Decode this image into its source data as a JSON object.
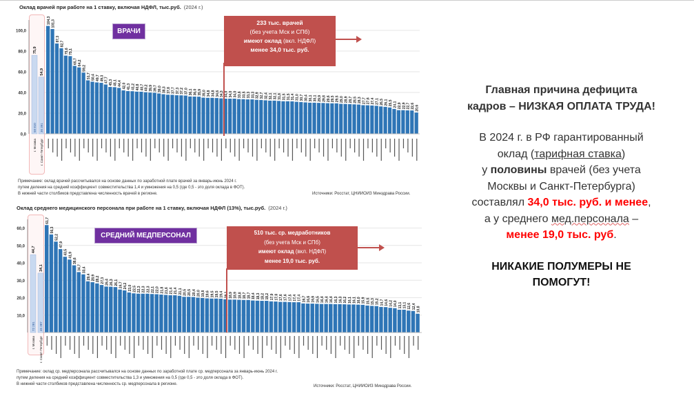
{
  "chart_data": [
    {
      "type": "bar",
      "title": "Оклад врачей при работе на 1 ставку, включая НДФЛ, тыс.руб.",
      "year": "(2024 г.)",
      "tag": "ВРАЧИ",
      "ylim": [
        0,
        110
      ],
      "yticks": [
        "0,0",
        "20,0",
        "40,0",
        "60,0",
        "80,0",
        "100,0"
      ],
      "ytick_values": [
        0,
        20,
        40,
        60,
        80,
        100
      ],
      "capitals": {
        "categories": [
          "г. Москва",
          "г. Санкт-Петербург"
        ],
        "values": [
          75.9,
          54.9
        ],
        "counts": [
          "58 810",
          "30 391"
        ]
      },
      "values": [
        104.3,
        101.3,
        87.3,
        82.7,
        75.6,
        75.1,
        65.7,
        64.2,
        59.2,
        51.7,
        50.4,
        49.7,
        49.3,
        47.7,
        45.3,
        45.1,
        44.4,
        42.0,
        41.3,
        41.2,
        40.8,
        40.7,
        40.2,
        39.9,
        39.7,
        39.0,
        38.3,
        37.8,
        37.7,
        37.3,
        37.2,
        37.0,
        36.1,
        36.0,
        35.9,
        35.0,
        34.8,
        34.8,
        34.6,
        34.3,
        34.0,
        34.0,
        34.0,
        33.6,
        33.5,
        33.3,
        33.3,
        32.9,
        32.7,
        32.4,
        32.1,
        32.1,
        31.8,
        31.5,
        31.5,
        31.4,
        31.0,
        30.7,
        30.4,
        30.1,
        30.1,
        29.9,
        29.8,
        29.6,
        29.5,
        29.5,
        29.0,
        28.9,
        28.7,
        28.5,
        28.3,
        27.7,
        27.6,
        27.4,
        27.1,
        26.5,
        26.1,
        25.5,
        24.1,
        22.9,
        22.9,
        22.7,
        22.6,
        20.6
      ],
      "threshold_index": 40,
      "callout": {
        "line1": "233 тыс. врачей",
        "line2": "(без учета Мск и СПб)",
        "line3_bold": "имеют оклад",
        "line3_rest": " (вкл. НДФЛ)",
        "line4": "менее 34,0 тыс. руб."
      },
      "notes": [
        "Примечание: оклад врачей рассчитывался на основе данных по заработной плате врачей за январь-июнь 2024 г.",
        "путем деления на средний коэффициент совместительства 1,4 и умножения на 0,5 (где 0,5 - это доля оклада в ФОТ).",
        "В нижней части столбиков представлена численность врачей в регионе."
      ],
      "source": "Источники: Росстат, ЦНИИОИЗ Минздрава России."
    },
    {
      "type": "bar",
      "title": "Оклад среднего медицинского персонала при работе на 1 ставку, включая НДФЛ (13%), тыс.руб.",
      "year": "(2024 г.)",
      "tag": "СРЕДНИЙ МЕДПЕРСОНАЛ",
      "ylim": [
        0,
        65
      ],
      "yticks": [
        "10,0",
        "20,0",
        "30,0",
        "40,0",
        "50,0",
        "60,0"
      ],
      "ytick_values": [
        10,
        20,
        30,
        40,
        50,
        60
      ],
      "capitals": {
        "categories": [
          "г. Москва",
          "г. Санкт-Петербург"
        ],
        "values": [
          44.7,
          34.1
        ],
        "counts": [
          "72 281",
          "45 387"
        ]
      },
      "values": [
        61.7,
        56.3,
        52.2,
        47.9,
        43.5,
        41.9,
        38.6,
        34.7,
        33.4,
        29.4,
        28.9,
        28.2,
        27.3,
        26.4,
        26.3,
        26.1,
        24.7,
        24.2,
        23.0,
        22.5,
        22.3,
        22.3,
        22.3,
        22.1,
        22.0,
        21.8,
        21.6,
        21.4,
        21.4,
        21.1,
        20.5,
        20.5,
        20.4,
        20.0,
        19.8,
        19.6,
        19.5,
        19.5,
        19.4,
        19.1,
        18.9,
        18.9,
        18.8,
        18.7,
        18.7,
        18.4,
        18.3,
        18.2,
        18.2,
        17.9,
        17.8,
        17.6,
        17.6,
        17.5,
        17.4,
        17.4,
        16.7,
        16.6,
        16.6,
        16.5,
        16.4,
        16.4,
        16.4,
        16.3,
        16.3,
        16.2,
        16.1,
        16.1,
        16.0,
        15.9,
        15.5,
        15.3,
        15.2,
        14.7,
        14.6,
        14.2,
        14.0,
        13.1,
        13.1,
        12.6,
        12.4,
        10.8
      ],
      "threshold_index": 40,
      "callout": {
        "line1": "510 тыс. ср. медработников",
        "line2": "(без учета Мск и СПб)",
        "line3_bold": "имеют оклад",
        "line3_rest": " (вкл. НДФЛ)",
        "line4": "менее 19,0 тыс. руб."
      },
      "notes": [
        "Примечание: оклад ср. медперсонала рассчитывался на основе данных по заработной плате ср. медперсонала за январь-июнь 2024 г.",
        "путем деления на средний коэффициент совместительства 1,3 и умножения на 0,5 (где 0,5 - это доля оклада в ФОТ).",
        "В нижней части столбиков представлена численность ср. медперсонала в регионе."
      ],
      "source": "Источники: Росстат, ЦНИИОИЗ Минздрава России."
    }
  ],
  "right_text": {
    "heading1": "Главная причина дефицита",
    "heading2": "кадров – НИЗКАЯ ОПЛАТА ТРУДА!",
    "p1": "В 2024 г. в РФ гарантированный",
    "p2a": "оклад (",
    "p2u": "тарифная ставка",
    "p2b": ")",
    "p3a": "у ",
    "p3b": "половины",
    "p3c": " врачей (без учета",
    "p4": "Москвы и Санкт-Петербурга)",
    "p5a": "составлял ",
    "p5red": "34,0 тыс. руб. и менее",
    "p5b": ",",
    "p6a": "а у среднего ",
    "p6w": "мед.персонала",
    "p6b": " –",
    "p7red": "менее  19,0 тыс. руб",
    "p7b": ".",
    "end1": "НИКАКИЕ ПОЛУМЕРЫ НЕ",
    "end2": "ПОМОГУТ!"
  },
  "colors": {
    "bar": "#2e75b6",
    "capital_bar": "#c9d9f0",
    "callout": "#c0504d",
    "tag": "#7030a0",
    "highlight": "#ff0000"
  }
}
